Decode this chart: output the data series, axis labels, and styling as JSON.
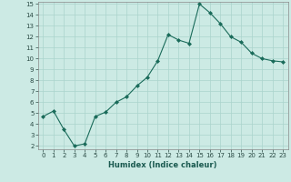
{
  "x": [
    0,
    1,
    2,
    3,
    4,
    5,
    6,
    7,
    8,
    9,
    10,
    11,
    12,
    13,
    14,
    15,
    16,
    17,
    18,
    19,
    20,
    21,
    22,
    23
  ],
  "y": [
    4.7,
    5.2,
    3.5,
    2.0,
    2.2,
    4.7,
    5.1,
    6.0,
    6.5,
    7.5,
    8.3,
    9.8,
    12.2,
    11.7,
    11.4,
    15.0,
    14.2,
    13.2,
    12.0,
    11.5,
    10.5,
    10.0,
    9.8,
    9.7
  ],
  "line_color": "#1a6b5a",
  "marker": "D",
  "marker_size": 2.0,
  "bg_color": "#cceae4",
  "grid_color": "#aad4cc",
  "xlabel": "Humidex (Indice chaleur)",
  "ylim": [
    2,
    15
  ],
  "xlim": [
    -0.5,
    23.5
  ],
  "yticks": [
    2,
    3,
    4,
    5,
    6,
    7,
    8,
    9,
    10,
    11,
    12,
    13,
    14,
    15
  ],
  "xticks": [
    0,
    1,
    2,
    3,
    4,
    5,
    6,
    7,
    8,
    9,
    10,
    11,
    12,
    13,
    14,
    15,
    16,
    17,
    18,
    19,
    20,
    21,
    22,
    23
  ]
}
